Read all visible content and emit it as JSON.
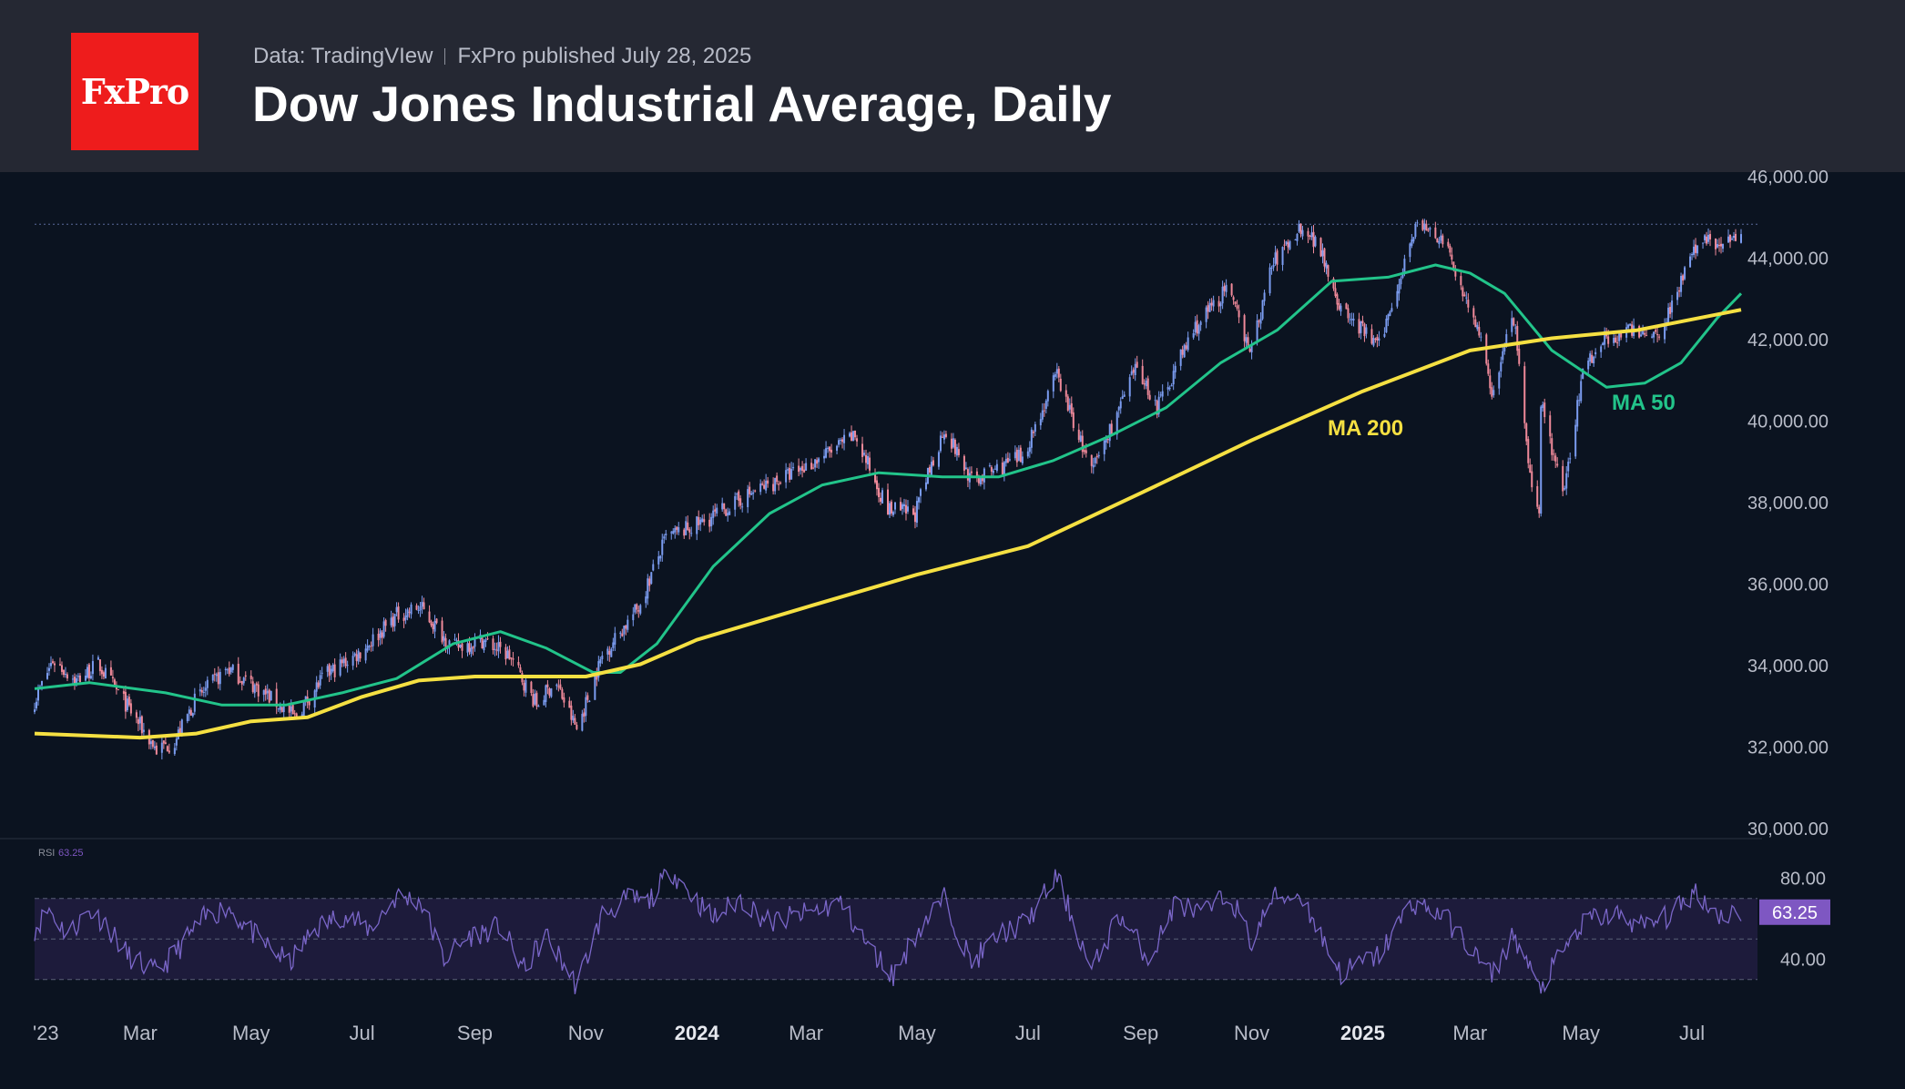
{
  "header": {
    "logo_text": "FxPro",
    "data_source": "Data: TradingVIew",
    "published": "FxPro published July 28, 2025",
    "title": "Dow Jones Industrial Average, Daily"
  },
  "colors": {
    "background": "#0b1320",
    "header": "#252833",
    "logo": "#ee1c1c",
    "up_candle": "#7b9cf0",
    "down_candle": "#f08a9a",
    "ma50": "#22c48a",
    "ma200": "#f5e042",
    "rsi_line": "#7a66c8",
    "rsi_band": "#241f44",
    "rsi_badge": "#7e57c2"
  },
  "chart_data": [
    {
      "type": "candlestick",
      "title": "Dow Jones Industrial Average, Daily",
      "x_range": [
        "2023-01-02",
        "2025-07-28"
      ],
      "x_tick_labels": [
        {
          "label": "'23",
          "date": "2023-01-01"
        },
        {
          "label": "Mar",
          "date": "2023-03-01"
        },
        {
          "label": "May",
          "date": "2023-05-01"
        },
        {
          "label": "Jul",
          "date": "2023-07-01"
        },
        {
          "label": "Sep",
          "date": "2023-09-01"
        },
        {
          "label": "Nov",
          "date": "2023-11-01"
        },
        {
          "label": "2024",
          "date": "2024-01-01",
          "bold": true
        },
        {
          "label": "Mar",
          "date": "2024-03-01"
        },
        {
          "label": "May",
          "date": "2024-05-01"
        },
        {
          "label": "Jul",
          "date": "2024-07-01"
        },
        {
          "label": "Sep",
          "date": "2024-09-01"
        },
        {
          "label": "Nov",
          "date": "2024-11-01"
        },
        {
          "label": "2025",
          "date": "2025-01-01",
          "bold": true
        },
        {
          "label": "Mar",
          "date": "2025-03-01"
        },
        {
          "label": "May",
          "date": "2025-05-01"
        },
        {
          "label": "Jul",
          "date": "2025-07-01"
        }
      ],
      "ylim": [
        30000,
        46000
      ],
      "y_tick_labels": [
        "46,000.00",
        "44,000.00",
        "42,000.00",
        "40,000.00",
        "38,000.00",
        "36,000.00",
        "34,000.00",
        "32,000.00",
        "30,000.00"
      ],
      "y_ticks": [
        46000,
        44000,
        42000,
        40000,
        38000,
        36000,
        34000,
        32000,
        30000
      ],
      "reference_line": 44900,
      "price_path": [
        [
          "2023-01-02",
          33200
        ],
        [
          "2023-01-12",
          34200
        ],
        [
          "2023-01-25",
          33700
        ],
        [
          "2023-02-06",
          34100
        ],
        [
          "2023-02-20",
          33200
        ],
        [
          "2023-03-10",
          32000
        ],
        [
          "2023-03-20",
          32200
        ],
        [
          "2023-03-31",
          33200
        ],
        [
          "2023-04-18",
          34000
        ],
        [
          "2023-05-05",
          33500
        ],
        [
          "2023-05-25",
          32800
        ],
        [
          "2023-06-10",
          33800
        ],
        [
          "2023-06-30",
          34400
        ],
        [
          "2023-07-20",
          35300
        ],
        [
          "2023-08-02",
          35500
        ],
        [
          "2023-08-20",
          34500
        ],
        [
          "2023-09-05",
          34700
        ],
        [
          "2023-09-20",
          34300
        ],
        [
          "2023-10-05",
          33100
        ],
        [
          "2023-10-15",
          33700
        ],
        [
          "2023-10-27",
          32500
        ],
        [
          "2023-11-10",
          34300
        ],
        [
          "2023-11-30",
          35500
        ],
        [
          "2023-12-15",
          37200
        ],
        [
          "2024-01-05",
          37600
        ],
        [
          "2024-01-31",
          38300
        ],
        [
          "2024-02-28",
          38900
        ],
        [
          "2024-03-28",
          39700
        ],
        [
          "2024-04-15",
          37900
        ],
        [
          "2024-04-30",
          37800
        ],
        [
          "2024-05-16",
          39900
        ],
        [
          "2024-05-31",
          38600
        ],
        [
          "2024-06-28",
          39200
        ],
        [
          "2024-07-17",
          41200
        ],
        [
          "2024-08-05",
          38800
        ],
        [
          "2024-08-30",
          41400
        ],
        [
          "2024-09-10",
          40400
        ],
        [
          "2024-09-30",
          42300
        ],
        [
          "2024-10-18",
          43300
        ],
        [
          "2024-11-01",
          41800
        ],
        [
          "2024-11-12",
          43900
        ],
        [
          "2024-11-29",
          44900
        ],
        [
          "2024-12-10",
          44200
        ],
        [
          "2024-12-20",
          42800
        ],
        [
          "2025-01-10",
          41900
        ],
        [
          "2025-01-30",
          44900
        ],
        [
          "2025-02-14",
          44500
        ],
        [
          "2025-03-04",
          42500
        ],
        [
          "2025-03-13",
          40800
        ],
        [
          "2025-03-25",
          42600
        ],
        [
          "2025-04-04",
          38300
        ],
        [
          "2025-04-08",
          37600
        ],
        [
          "2025-04-09",
          40600
        ],
        [
          "2025-04-21",
          38200
        ],
        [
          "2025-05-02",
          41300
        ],
        [
          "2025-05-13",
          42100
        ],
        [
          "2025-06-02",
          42300
        ],
        [
          "2025-06-13",
          42200
        ],
        [
          "2025-06-30",
          44100
        ],
        [
          "2025-07-10",
          44600
        ],
        [
          "2025-07-18",
          44300
        ],
        [
          "2025-07-28",
          44850
        ]
      ],
      "series": [
        {
          "name": "MA 50",
          "color": "#22c48a",
          "points": [
            [
              "2023-01-02",
              33500
            ],
            [
              "2023-02-01",
              33650
            ],
            [
              "2023-03-15",
              33400
            ],
            [
              "2023-04-15",
              33100
            ],
            [
              "2023-05-20",
              33100
            ],
            [
              "2023-06-20",
              33400
            ],
            [
              "2023-07-20",
              33750
            ],
            [
              "2023-08-20",
              34600
            ],
            [
              "2023-09-15",
              34900
            ],
            [
              "2023-10-10",
              34500
            ],
            [
              "2023-11-05",
              33900
            ],
            [
              "2023-11-20",
              33900
            ],
            [
              "2023-12-10",
              34600
            ],
            [
              "2024-01-10",
              36500
            ],
            [
              "2024-02-10",
              37800
            ],
            [
              "2024-03-10",
              38500
            ],
            [
              "2024-04-10",
              38800
            ],
            [
              "2024-05-15",
              38700
            ],
            [
              "2024-06-15",
              38700
            ],
            [
              "2024-07-15",
              39100
            ],
            [
              "2024-08-15",
              39700
            ],
            [
              "2024-09-15",
              40400
            ],
            [
              "2024-10-15",
              41500
            ],
            [
              "2024-11-15",
              42300
            ],
            [
              "2024-12-15",
              43500
            ],
            [
              "2025-01-15",
              43600
            ],
            [
              "2025-02-10",
              43900
            ],
            [
              "2025-03-01",
              43700
            ],
            [
              "2025-03-20",
              43200
            ],
            [
              "2025-04-15",
              41800
            ],
            [
              "2025-05-15",
              40900
            ],
            [
              "2025-06-05",
              41000
            ],
            [
              "2025-06-25",
              41500
            ],
            [
              "2025-07-15",
              42600
            ],
            [
              "2025-07-28",
              43200
            ]
          ]
        },
        {
          "name": "MA 200",
          "color": "#f5e042",
          "points": [
            [
              "2023-01-02",
              32400
            ],
            [
              "2023-03-01",
              32300
            ],
            [
              "2023-04-01",
              32400
            ],
            [
              "2023-05-01",
              32700
            ],
            [
              "2023-06-01",
              32800
            ],
            [
              "2023-07-01",
              33300
            ],
            [
              "2023-08-01",
              33700
            ],
            [
              "2023-09-01",
              33800
            ],
            [
              "2023-10-01",
              33800
            ],
            [
              "2023-11-01",
              33800
            ],
            [
              "2023-12-01",
              34100
            ],
            [
              "2024-01-01",
              34700
            ],
            [
              "2024-03-01",
              35500
            ],
            [
              "2024-05-01",
              36300
            ],
            [
              "2024-07-01",
              37000
            ],
            [
              "2024-09-01",
              38300
            ],
            [
              "2024-11-01",
              39600
            ],
            [
              "2025-01-01",
              40800
            ],
            [
              "2025-03-01",
              41800
            ],
            [
              "2025-04-15",
              42100
            ],
            [
              "2025-06-01",
              42300
            ],
            [
              "2025-07-28",
              42800
            ]
          ]
        }
      ],
      "annotations": [
        {
          "text": "MA 200",
          "color": "#f5e042"
        },
        {
          "text": "MA 50",
          "color": "#22c48a"
        }
      ]
    },
    {
      "type": "line",
      "title": "RSI",
      "current_value": "63.25",
      "ylim": [
        20,
        100
      ],
      "y_tick_labels": [
        "80.00",
        "40.00"
      ],
      "y_ticks": [
        80,
        40
      ],
      "band": [
        30,
        70
      ],
      "mid": 50,
      "series": [
        {
          "name": "RSI",
          "points": [
            [
              "2023-01-02",
              55
            ],
            [
              "2023-01-10",
              65
            ],
            [
              "2023-01-20",
              52
            ],
            [
              "2023-02-01",
              64
            ],
            [
              "2023-02-10",
              58
            ],
            [
              "2023-02-22",
              42
            ],
            [
              "2023-03-10",
              33
            ],
            [
              "2023-03-22",
              45
            ],
            [
              "2023-04-05",
              60
            ],
            [
              "2023-04-18",
              66
            ],
            [
              "2023-05-05",
              50
            ],
            [
              "2023-05-22",
              38
            ],
            [
              "2023-06-05",
              55
            ],
            [
              "2023-06-20",
              62
            ],
            [
              "2023-07-05",
              55
            ],
            [
              "2023-07-20",
              71
            ],
            [
              "2023-08-02",
              69
            ],
            [
              "2023-08-15",
              40
            ],
            [
              "2023-08-30",
              52
            ],
            [
              "2023-09-15",
              56
            ],
            [
              "2023-09-28",
              35
            ],
            [
              "2023-10-10",
              52
            ],
            [
              "2023-10-27",
              27
            ],
            [
              "2023-11-10",
              62
            ],
            [
              "2023-11-25",
              70
            ],
            [
              "2023-12-05",
              68
            ],
            [
              "2023-12-18",
              84
            ],
            [
              "2023-12-28",
              73
            ],
            [
              "2024-01-10",
              60
            ],
            [
              "2024-01-25",
              70
            ],
            [
              "2024-02-10",
              58
            ],
            [
              "2024-02-28",
              62
            ],
            [
              "2024-03-20",
              68
            ],
            [
              "2024-04-05",
              45
            ],
            [
              "2024-04-18",
              32
            ],
            [
              "2024-05-02",
              55
            ],
            [
              "2024-05-16",
              70
            ],
            [
              "2024-05-31",
              38
            ],
            [
              "2024-06-15",
              52
            ],
            [
              "2024-06-30",
              58
            ],
            [
              "2024-07-17",
              81
            ],
            [
              "2024-08-05",
              34
            ],
            [
              "2024-08-20",
              62
            ],
            [
              "2024-09-06",
              40
            ],
            [
              "2024-09-20",
              68
            ],
            [
              "2024-10-05",
              62
            ],
            [
              "2024-10-20",
              72
            ],
            [
              "2024-11-01",
              48
            ],
            [
              "2024-11-12",
              70
            ],
            [
              "2024-11-28",
              72
            ],
            [
              "2024-12-10",
              50
            ],
            [
              "2024-12-20",
              33
            ],
            [
              "2025-01-10",
              42
            ],
            [
              "2025-01-28",
              68
            ],
            [
              "2025-02-14",
              62
            ],
            [
              "2025-03-04",
              42
            ],
            [
              "2025-03-13",
              32
            ],
            [
              "2025-03-25",
              52
            ],
            [
              "2025-04-08",
              25
            ],
            [
              "2025-04-22",
              45
            ],
            [
              "2025-05-05",
              60
            ],
            [
              "2025-05-20",
              62
            ],
            [
              "2025-06-05",
              56
            ],
            [
              "2025-06-20",
              62
            ],
            [
              "2025-07-03",
              74
            ],
            [
              "2025-07-15",
              62
            ],
            [
              "2025-07-28",
              63.25
            ]
          ]
        }
      ]
    }
  ]
}
